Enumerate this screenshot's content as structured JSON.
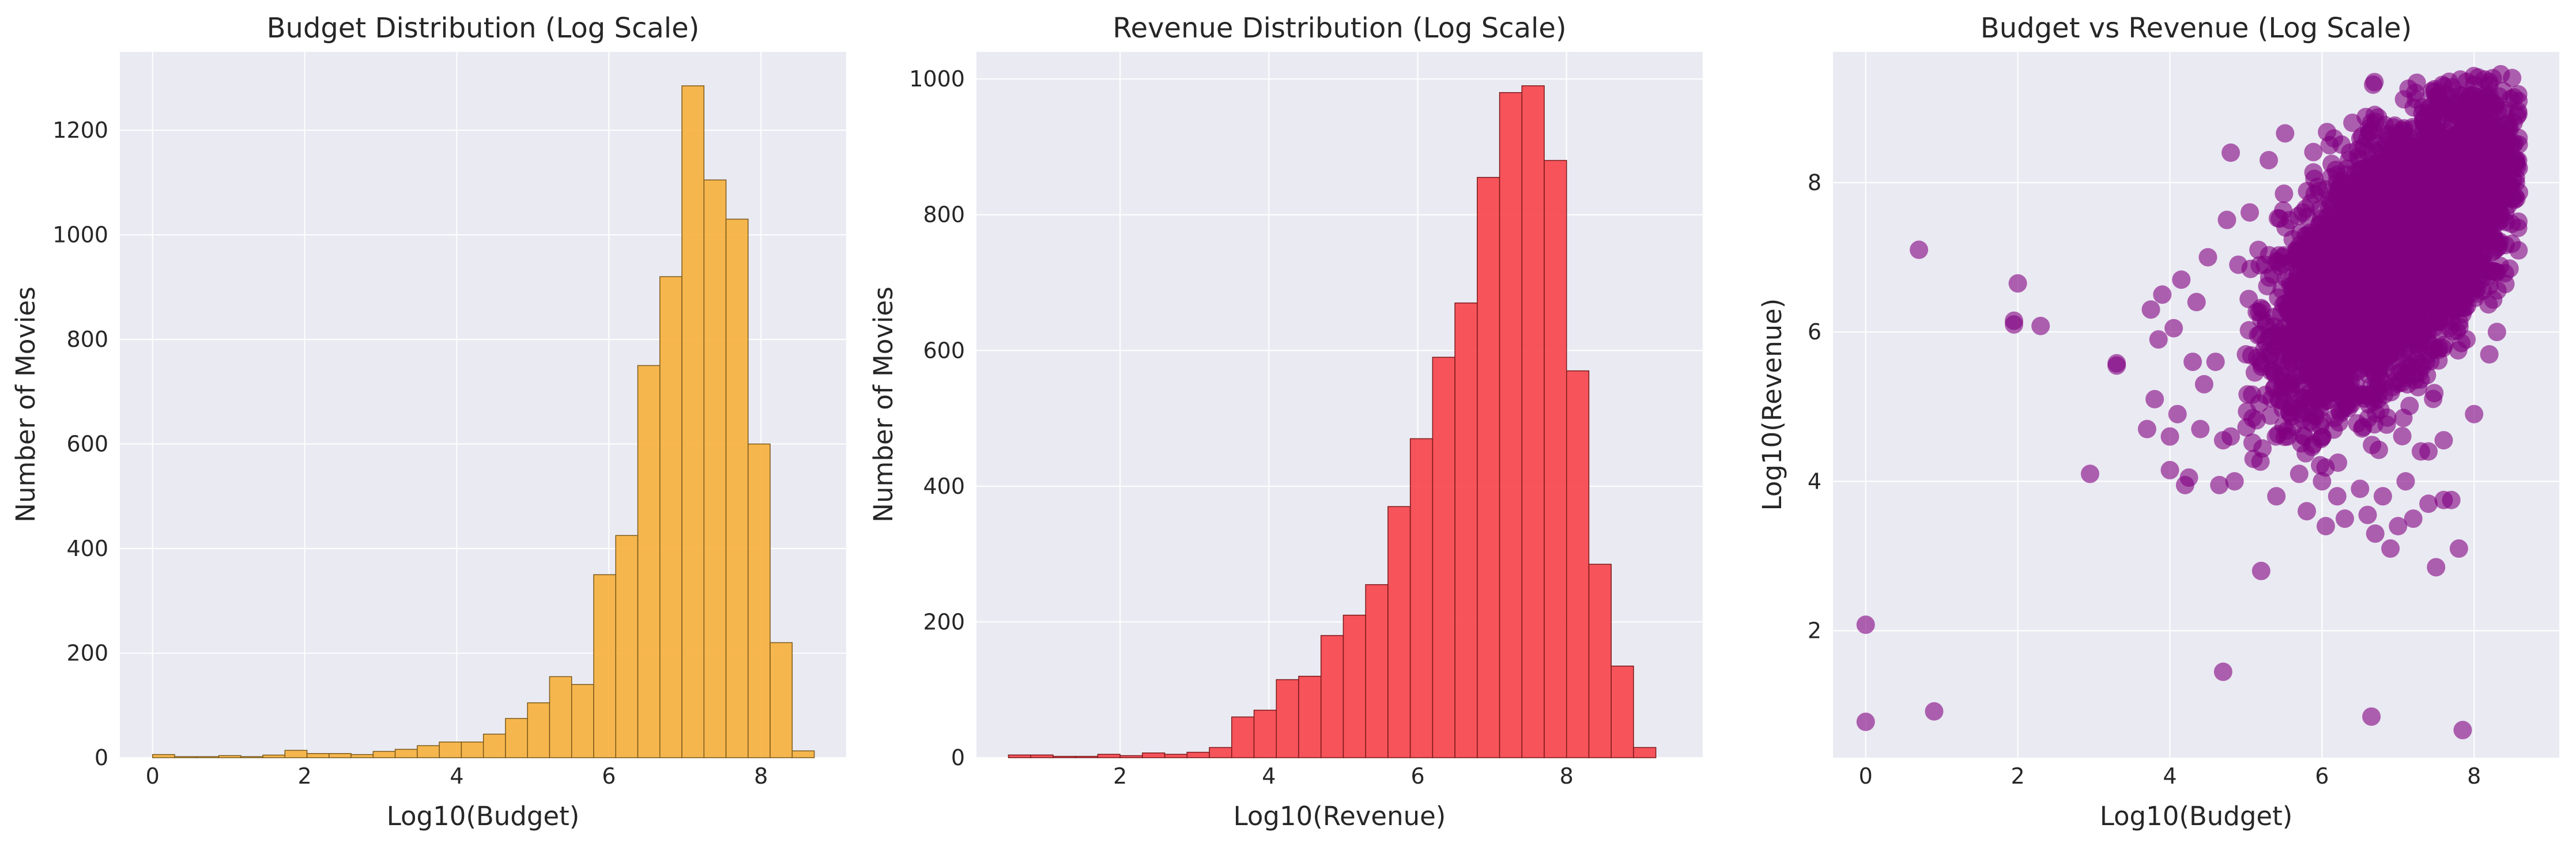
{
  "chart_data": [
    {
      "type": "bar",
      "title": "Budget Distribution (Log Scale)",
      "xlabel": "Log10(Budget)",
      "ylabel": "Number of Movies",
      "xlim": [
        -0.43,
        9.12
      ],
      "ylim": [
        0,
        1350
      ],
      "xticks": [
        0,
        2,
        4,
        6,
        8
      ],
      "yticks": [
        0,
        200,
        400,
        600,
        800,
        1000,
        1200
      ],
      "grid": true,
      "bar_color": "#f7b03c",
      "edge_color": "#7a5a1a",
      "bin_edges": [
        0,
        0.29,
        0.58,
        0.87,
        1.16,
        1.45,
        1.74,
        2.03,
        2.32,
        2.61,
        2.9,
        3.19,
        3.48,
        3.77,
        4.06,
        4.35,
        4.64,
        4.93,
        5.22,
        5.51,
        5.8,
        6.09,
        6.38,
        6.67,
        6.96,
        7.25,
        7.54,
        7.83,
        8.12,
        8.41,
        8.7
      ],
      "values": [
        6,
        2,
        2,
        4,
        2,
        5,
        14,
        8,
        8,
        6,
        12,
        16,
        23,
        30,
        30,
        45,
        75,
        105,
        155,
        140,
        350,
        425,
        750,
        920,
        1285,
        1105,
        1030,
        600,
        220,
        13
      ]
    },
    {
      "type": "bar",
      "title": "Revenue Distribution (Log Scale)",
      "xlabel": "Log10(Revenue)",
      "ylabel": "Number of Movies",
      "xlim": [
        0.07,
        9.83
      ],
      "ylim": [
        0,
        1040
      ],
      "xticks": [
        2,
        4,
        6,
        8
      ],
      "yticks": [
        0,
        200,
        400,
        600,
        800,
        1000
      ],
      "grid": true,
      "bar_color": "#f7434a",
      "edge_color": "#7a1a1a",
      "bin_edges": [
        0.5,
        0.8,
        1.1,
        1.4,
        1.7,
        2.0,
        2.3,
        2.6,
        2.9,
        3.2,
        3.5,
        3.8,
        4.1,
        4.4,
        4.7,
        5.0,
        5.3,
        5.6,
        5.9,
        6.2,
        6.5,
        6.8,
        7.1,
        7.4,
        7.7,
        8.0,
        8.3,
        8.6,
        8.9,
        9.2,
        9.5
      ],
      "values": [
        4,
        4,
        2,
        2,
        5,
        3,
        7,
        5,
        8,
        15,
        60,
        70,
        115,
        120,
        180,
        210,
        255,
        370,
        470,
        590,
        670,
        855,
        980,
        990,
        880,
        570,
        285,
        135,
        15,
        0
      ]
    },
    {
      "type": "scatter",
      "title": "Budget vs Revenue (Log Scale)",
      "xlabel": "Log10(Budget)",
      "ylabel": "Log10(Revenue)",
      "xlim": [
        -0.43,
        9.12
      ],
      "ylim": [
        0.3,
        9.75
      ],
      "xticks": [
        0,
        2,
        4,
        6,
        8
      ],
      "yticks": [
        2,
        4,
        6,
        8
      ],
      "grid": true,
      "point_color": "#800080",
      "point_alpha": 0.6,
      "outliers": [
        [
          0.0,
          2.08
        ],
        [
          0.0,
          0.78
        ],
        [
          0.9,
          0.92
        ],
        [
          0.7,
          7.1
        ],
        [
          1.95,
          6.1
        ],
        [
          1.95,
          6.15
        ],
        [
          2.0,
          6.65
        ],
        [
          2.3,
          6.08
        ],
        [
          2.95,
          4.1
        ],
        [
          3.3,
          5.58
        ],
        [
          3.3,
          5.55
        ],
        [
          3.7,
          4.7
        ],
        [
          3.75,
          6.3
        ],
        [
          3.8,
          5.1
        ],
        [
          3.85,
          5.9
        ],
        [
          3.9,
          6.5
        ],
        [
          4.0,
          4.15
        ],
        [
          4.0,
          4.6
        ],
        [
          4.05,
          6.05
        ],
        [
          4.1,
          4.9
        ],
        [
          4.15,
          6.7
        ],
        [
          4.2,
          3.95
        ],
        [
          4.25,
          4.05
        ],
        [
          4.3,
          5.6
        ],
        [
          4.35,
          6.4
        ],
        [
          4.4,
          4.7
        ],
        [
          4.45,
          5.3
        ],
        [
          4.5,
          7.0
        ],
        [
          4.6,
          5.6
        ],
        [
          4.65,
          3.95
        ],
        [
          4.7,
          1.45
        ],
        [
          4.7,
          4.55
        ],
        [
          4.75,
          7.5
        ],
        [
          4.8,
          8.4
        ],
        [
          4.8,
          4.6
        ],
        [
          4.85,
          4.0
        ],
        [
          4.9,
          6.9
        ],
        [
          5.0,
          5.7
        ],
        [
          5.05,
          7.6
        ],
        [
          5.1,
          4.3
        ],
        [
          5.2,
          2.8
        ],
        [
          5.25,
          6.9
        ],
        [
          5.3,
          8.3
        ],
        [
          5.4,
          3.8
        ],
        [
          5.5,
          7.85
        ],
        [
          5.55,
          4.6
        ],
        [
          5.6,
          5.0
        ],
        [
          5.7,
          4.1
        ],
        [
          5.8,
          3.6
        ],
        [
          5.9,
          8.05
        ],
        [
          6.0,
          4.0
        ],
        [
          6.05,
          3.4
        ],
        [
          6.1,
          8.5
        ],
        [
          6.2,
          3.8
        ],
        [
          6.3,
          3.5
        ],
        [
          6.4,
          8.8
        ],
        [
          6.5,
          3.9
        ],
        [
          6.6,
          3.55
        ],
        [
          6.65,
          0.85
        ],
        [
          6.7,
          3.3
        ],
        [
          6.8,
          3.8
        ],
        [
          6.9,
          3.1
        ],
        [
          7.0,
          3.4
        ],
        [
          7.1,
          4.0
        ],
        [
          7.2,
          3.5
        ],
        [
          7.3,
          4.4
        ],
        [
          7.4,
          3.7
        ],
        [
          7.5,
          2.85
        ],
        [
          7.6,
          3.75
        ],
        [
          7.8,
          3.1
        ],
        [
          7.85,
          0.67
        ],
        [
          7.9,
          9.35
        ],
        [
          7.7,
          3.75
        ],
        [
          8.2,
          5.7
        ],
        [
          8.3,
          6.0
        ],
        [
          8.35,
          9.45
        ],
        [
          8.5,
          9.4
        ],
        [
          8.4,
          7.8
        ],
        [
          8.55,
          8.0
        ],
        [
          7.8,
          6.4
        ],
        [
          7.9,
          5.9
        ],
        [
          8.0,
          4.9
        ],
        [
          7.6,
          4.55
        ],
        [
          7.4,
          4.4
        ]
      ],
      "dense_cluster": {
        "center": [
          7.0,
          7.1
        ],
        "trend_slope": 0.75,
        "x_spread": 0.75,
        "y_spread": 0.75,
        "x_range": [
          5.0,
          8.6
        ],
        "y_range": [
          4.0,
          9.45
        ],
        "n_points": 4500
      }
    }
  ]
}
